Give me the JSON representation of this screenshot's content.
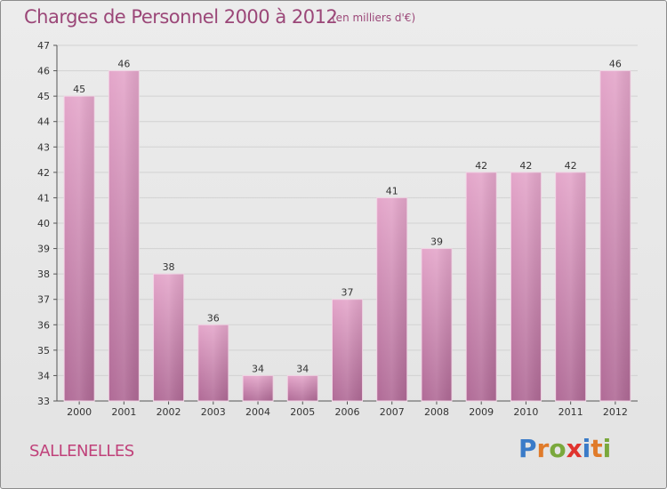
{
  "header": {
    "title": "Charges de Personnel 2000 à 2012",
    "subtitle": "(en milliers d'€)"
  },
  "footer": {
    "commune": "SALLENELLES",
    "logo": "Proxiti"
  },
  "colors": {
    "bar_top": "#e4a6ca",
    "bar_bottom": "#b06a96",
    "title": "#9b4778",
    "commune": "#c0417a",
    "logo_letters": [
      "#3a7bc8",
      "#e07b2a",
      "#7aa83c",
      "#e0332e",
      "#3a7bc8",
      "#e07b2a",
      "#7aa83c"
    ]
  },
  "chart_data": {
    "type": "bar",
    "title": "Charges de Personnel 2000 à 2012",
    "subtitle": "(en milliers d'€)",
    "categories": [
      "2000",
      "2001",
      "2002",
      "2003",
      "2004",
      "2005",
      "2006",
      "2007",
      "2008",
      "2009",
      "2010",
      "2011",
      "2012"
    ],
    "values": [
      45,
      46,
      38,
      36,
      34,
      34,
      37,
      41,
      39,
      42,
      42,
      42,
      46
    ],
    "ylim": [
      33,
      47
    ],
    "yticks": [
      33,
      34,
      35,
      36,
      37,
      38,
      39,
      40,
      41,
      42,
      43,
      44,
      45,
      46,
      47
    ],
    "grid": true
  }
}
